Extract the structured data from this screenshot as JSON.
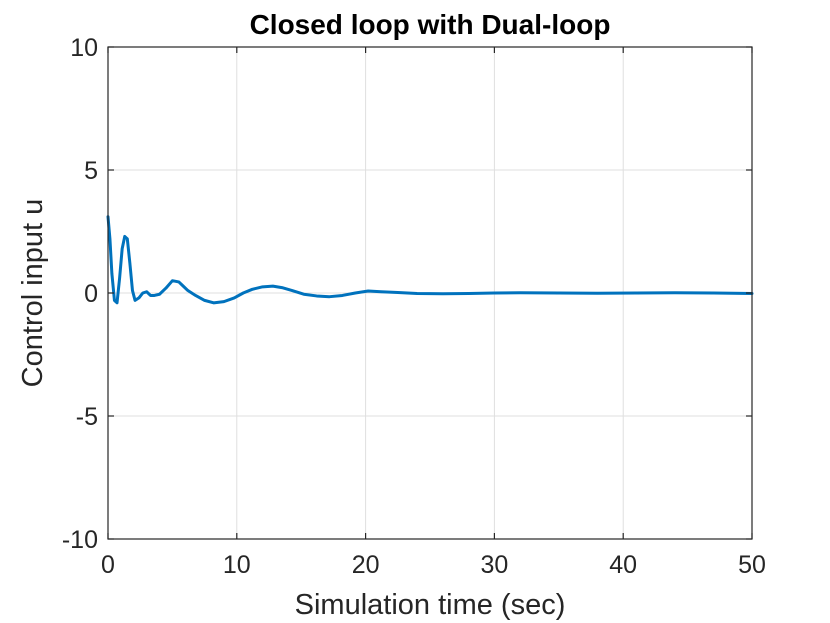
{
  "chart_data": {
    "type": "line",
    "title": "Closed loop with Dual-loop",
    "xlabel": "Simulation time (sec)",
    "ylabel": "Control input u",
    "xlim": [
      0,
      50
    ],
    "ylim": [
      -10,
      10
    ],
    "xticks": [
      0,
      10,
      20,
      30,
      40,
      50
    ],
    "yticks": [
      -10,
      -5,
      0,
      5,
      10
    ],
    "grid": true,
    "series": [
      {
        "color": "#0072BD",
        "x": [
          0,
          0.15,
          0.3,
          0.5,
          0.7,
          0.9,
          1.1,
          1.3,
          1.5,
          1.7,
          1.9,
          2.1,
          2.4,
          2.7,
          3.0,
          3.3,
          3.6,
          4.0,
          4.5,
          5.0,
          5.5,
          5.8,
          6.2,
          6.8,
          7.5,
          8.2,
          9.0,
          9.8,
          10.5,
          11.2,
          12.0,
          12.8,
          13.5,
          14.3,
          15.2,
          16.2,
          17.2,
          18.2,
          19.2,
          20.2,
          21.2,
          22.5,
          24,
          26,
          28,
          30,
          32,
          35,
          38,
          41,
          44,
          47,
          50
        ],
        "y": [
          3.1,
          2.2,
          0.8,
          -0.3,
          -0.4,
          0.6,
          1.8,
          2.3,
          2.2,
          1.2,
          0.1,
          -0.3,
          -0.2,
          0.0,
          0.05,
          -0.1,
          -0.1,
          -0.05,
          0.2,
          0.5,
          0.45,
          0.3,
          0.1,
          -0.1,
          -0.3,
          -0.4,
          -0.35,
          -0.2,
          0.0,
          0.15,
          0.25,
          0.28,
          0.22,
          0.1,
          -0.05,
          -0.12,
          -0.15,
          -0.1,
          0.0,
          0.08,
          0.05,
          0.02,
          -0.02,
          -0.03,
          -0.02,
          0.0,
          0.01,
          0.0,
          -0.01,
          0.0,
          0.01,
          0.0,
          -0.02
        ]
      }
    ]
  }
}
